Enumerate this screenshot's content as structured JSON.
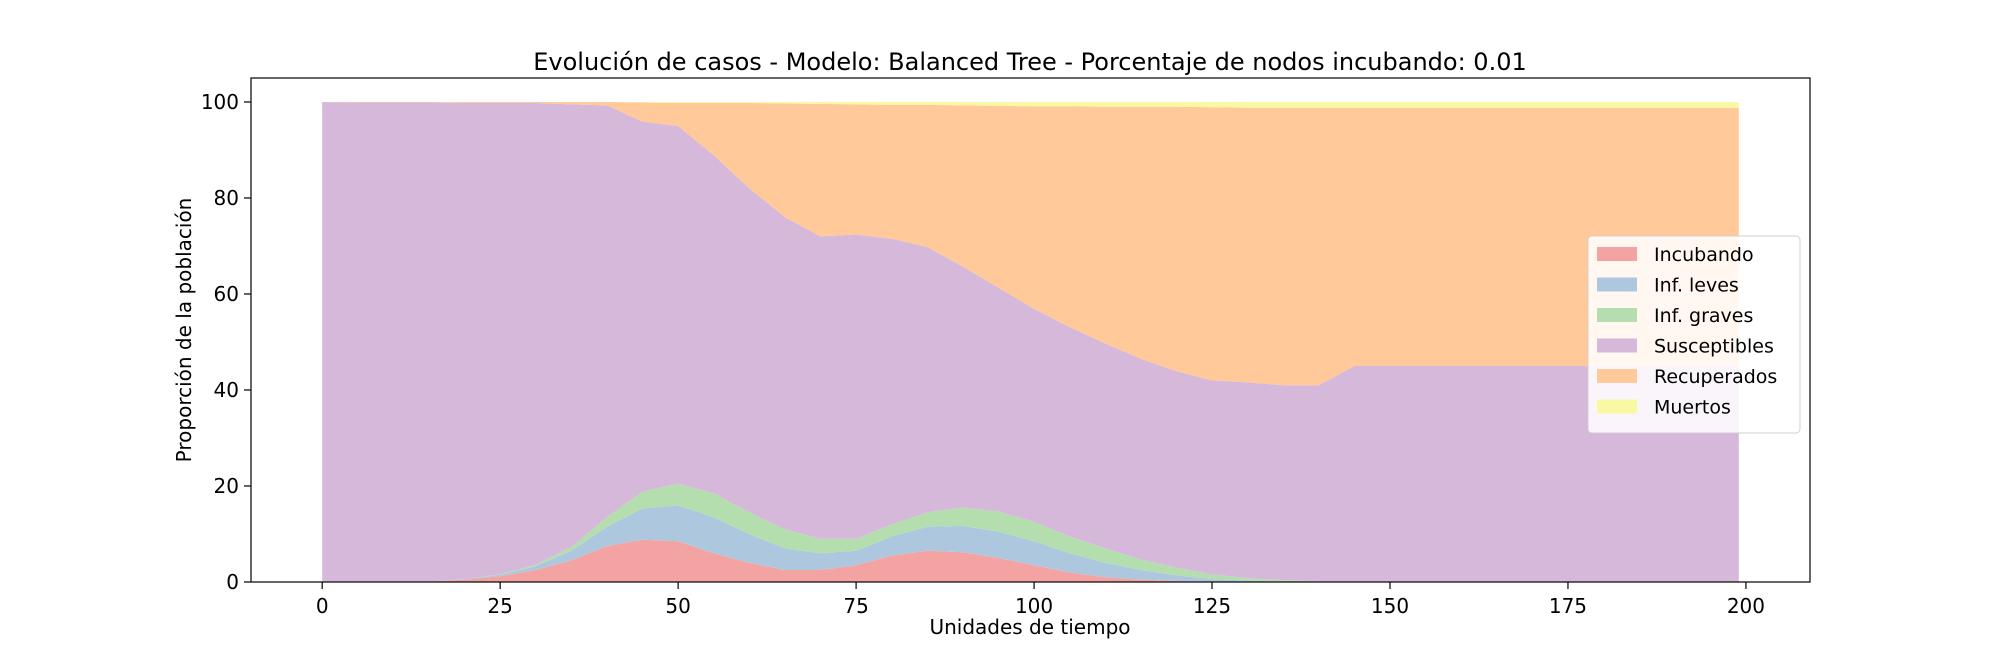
{
  "chart_data": {
    "type": "area",
    "stacked": true,
    "title": "Evolución de casos - Modelo: Balanced Tree - Porcentaje de nodos incubando: 0.01",
    "xlabel": "Unidades de tiempo",
    "ylabel": "Proporción de la población",
    "xlim": [
      -10,
      209
    ],
    "ylim": [
      0,
      105
    ],
    "xticks": [
      0,
      25,
      50,
      75,
      100,
      125,
      150,
      175,
      200
    ],
    "yticks": [
      0,
      20,
      40,
      60,
      80,
      100
    ],
    "legend_position": "center-right",
    "grid": false,
    "x": [
      0,
      5,
      10,
      15,
      20,
      25,
      30,
      35,
      40,
      45,
      50,
      55,
      60,
      65,
      70,
      75,
      80,
      85,
      90,
      95,
      100,
      105,
      110,
      115,
      120,
      125,
      130,
      135,
      140,
      145,
      150,
      155,
      160,
      165,
      170,
      175,
      180,
      185,
      190,
      195,
      199
    ],
    "series": [
      {
        "name": "Incubando",
        "color": "#f4a3a3",
        "values": [
          0,
          0,
          0,
          0.1,
          0.5,
          1.2,
          2.5,
          4.5,
          7.5,
          8.8,
          8.5,
          6,
          4,
          2.5,
          2.5,
          3.5,
          5.5,
          6.5,
          6.2,
          5,
          3.5,
          2,
          1,
          0.5,
          0.2,
          0.1,
          0,
          0,
          0,
          0,
          0,
          0,
          0,
          0,
          0,
          0,
          0,
          0,
          0,
          0,
          0
        ]
      },
      {
        "name": "Inf. leves",
        "color": "#adc8de",
        "values": [
          0,
          0,
          0,
          0,
          0.1,
          0.3,
          0.8,
          2,
          4,
          6.5,
          7.5,
          7.5,
          6,
          4.5,
          3.5,
          3,
          4,
          5,
          5.5,
          5.5,
          5,
          4,
          3,
          2,
          1.2,
          0.5,
          0.3,
          0.1,
          0,
          0,
          0,
          0,
          0,
          0,
          0,
          0,
          0,
          0,
          0,
          0,
          0
        ]
      },
      {
        "name": "Inf. graves",
        "color": "#b5deae",
        "values": [
          0,
          0,
          0,
          0,
          0,
          0.1,
          0.3,
          0.8,
          2,
          3.5,
          4.5,
          5,
          4.5,
          4,
          3,
          2.5,
          2.5,
          3,
          3.8,
          4.2,
          4,
          3.5,
          3,
          2.2,
          1.6,
          1,
          0.5,
          0.3,
          0.1,
          0,
          0,
          0,
          0,
          0,
          0,
          0,
          0,
          0,
          0,
          0,
          0
        ]
      },
      {
        "name": "Susceptibles",
        "color": "#d5b8da",
        "values": [
          100,
          99.9,
          99.9,
          99.8,
          99.2,
          98.2,
          96.2,
          92.2,
          85.8,
          77.1,
          74.5,
          70.4,
          67.5,
          65,
          63,
          63.4,
          59.5,
          55.3,
          50.2,
          46.6,
          44.4,
          43.6,
          42.7,
          41.8,
          40.9,
          40.4,
          40.8,
          40.6,
          40.9,
          45,
          45,
          45,
          45,
          45,
          45,
          45,
          45,
          45,
          45,
          45,
          45
        ]
      },
      {
        "name": "Recuperados",
        "color": "#ffc999",
        "values": [
          0,
          0.1,
          0.1,
          0.1,
          0.2,
          0.2,
          0.2,
          0.5,
          0.7,
          4,
          4.8,
          10.9,
          17.8,
          23.7,
          27.6,
          27.1,
          27.9,
          29.6,
          33.6,
          37.9,
          42.2,
          46,
          49.3,
          52.5,
          55.1,
          56.9,
          57.2,
          57.8,
          57.8,
          53.8,
          53.8,
          53.8,
          53.8,
          53.8,
          53.8,
          53.8,
          53.8,
          53.8,
          53.8,
          53.8,
          53.8
        ]
      },
      {
        "name": "Muertos",
        "color": "#f9f8a3",
        "values": [
          0,
          0,
          0,
          0,
          0,
          0,
          0,
          0,
          0,
          0.1,
          0.2,
          0.2,
          0.2,
          0.3,
          0.4,
          0.5,
          0.6,
          0.6,
          0.7,
          0.8,
          0.9,
          0.9,
          1,
          1,
          1,
          1.1,
          1.2,
          1.2,
          1.2,
          1.2,
          1.2,
          1.2,
          1.2,
          1.2,
          1.2,
          1.2,
          1.2,
          1.2,
          1.2,
          1.2,
          1.2
        ]
      }
    ]
  }
}
